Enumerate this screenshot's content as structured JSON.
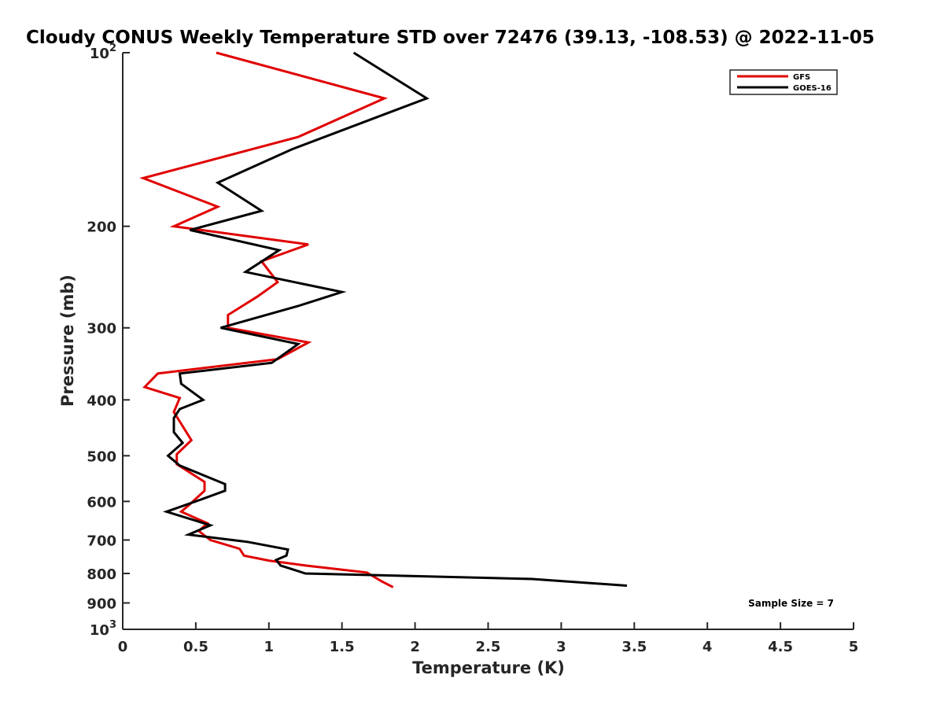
{
  "chart_data": {
    "type": "line",
    "title": "Cloudy CONUS Weekly Temperature STD over 72476 (39.13, -108.53) @ 2022-11-05",
    "xlabel": "Temperature (K)",
    "ylabel": "Pressure (mb)",
    "xlim": [
      0,
      5
    ],
    "ylim": [
      100,
      1000
    ],
    "y_scale": "log",
    "y_reversed": true,
    "grid": false,
    "legend_position": "top-right",
    "x_ticks": [
      "0",
      "0.5",
      "1",
      "1.5",
      "2",
      "2.5",
      "3",
      "3.5",
      "4",
      "4.5",
      "5"
    ],
    "y_ticks": [
      {
        "value": 100,
        "label": "10",
        "sup": "2"
      },
      {
        "value": 200,
        "label": "200",
        "sup": ""
      },
      {
        "value": 300,
        "label": "300",
        "sup": ""
      },
      {
        "value": 400,
        "label": "400",
        "sup": ""
      },
      {
        "value": 500,
        "label": "500",
        "sup": ""
      },
      {
        "value": 600,
        "label": "600",
        "sup": ""
      },
      {
        "value": 700,
        "label": "700",
        "sup": ""
      },
      {
        "value": 800,
        "label": "800",
        "sup": ""
      },
      {
        "value": 900,
        "label": "900",
        "sup": ""
      },
      {
        "value": 1000,
        "label": "10",
        "sup": "3"
      }
    ],
    "series": [
      {
        "name": "GFS",
        "color": "#e00000",
        "points": [
          [
            0.64,
            100
          ],
          [
            1.79,
            120
          ],
          [
            1.2,
            140
          ],
          [
            0.14,
            165
          ],
          [
            0.65,
            185
          ],
          [
            0.35,
            200
          ],
          [
            1.27,
            215
          ],
          [
            0.95,
            230
          ],
          [
            1.06,
            250
          ],
          [
            0.92,
            265
          ],
          [
            0.72,
            285
          ],
          [
            0.72,
            300
          ],
          [
            1.27,
            318
          ],
          [
            1.06,
            340
          ],
          [
            0.24,
            360
          ],
          [
            0.15,
            380
          ],
          [
            0.39,
            397
          ],
          [
            0.35,
            420
          ],
          [
            0.47,
            470
          ],
          [
            0.37,
            497
          ],
          [
            0.37,
            517
          ],
          [
            0.56,
            555
          ],
          [
            0.56,
            575
          ],
          [
            0.45,
            610
          ],
          [
            0.4,
            625
          ],
          [
            0.58,
            655
          ],
          [
            0.52,
            675
          ],
          [
            0.6,
            700
          ],
          [
            0.8,
            725
          ],
          [
            0.83,
            745
          ],
          [
            1.0,
            760
          ],
          [
            1.25,
            775
          ],
          [
            1.67,
            797
          ],
          [
            1.77,
            825
          ],
          [
            1.85,
            845
          ]
        ]
      },
      {
        "name": "GOES-16",
        "color": "#000000",
        "points": [
          [
            1.58,
            100
          ],
          [
            2.08,
            120
          ],
          [
            1.16,
            147
          ],
          [
            0.65,
            168
          ],
          [
            0.95,
            188
          ],
          [
            0.46,
            203
          ],
          [
            1.07,
            220
          ],
          [
            0.84,
            240
          ],
          [
            1.5,
            260
          ],
          [
            1.2,
            275
          ],
          [
            0.67,
            300
          ],
          [
            1.2,
            320
          ],
          [
            1.02,
            345
          ],
          [
            0.39,
            360
          ],
          [
            0.4,
            375
          ],
          [
            0.55,
            400
          ],
          [
            0.39,
            415
          ],
          [
            0.35,
            430
          ],
          [
            0.35,
            455
          ],
          [
            0.41,
            475
          ],
          [
            0.31,
            500
          ],
          [
            0.39,
            520
          ],
          [
            0.7,
            560
          ],
          [
            0.7,
            575
          ],
          [
            0.54,
            595
          ],
          [
            0.3,
            625
          ],
          [
            0.6,
            660
          ],
          [
            0.45,
            685
          ],
          [
            0.85,
            705
          ],
          [
            1.13,
            727
          ],
          [
            1.12,
            745
          ],
          [
            1.05,
            758
          ],
          [
            1.08,
            775
          ],
          [
            1.25,
            800
          ],
          [
            2.8,
            818
          ],
          [
            3.45,
            840
          ]
        ]
      }
    ],
    "annotation": "Sample Size = 7"
  }
}
